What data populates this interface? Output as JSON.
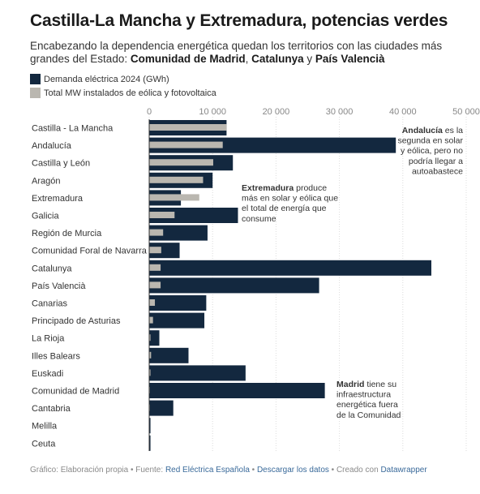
{
  "header": {
    "title": "Castilla-La Mancha y Extremadura, potencias verdes",
    "subtitle_pre": "Encabezando la dependencia energética quedan los territorios con las ciudades más grandes del Estado: ",
    "subtitle_b1": "Comunidad de Madrid",
    "subtitle_sep1": ", ",
    "subtitle_b2": "Catalunya",
    "subtitle_sep2": " y ",
    "subtitle_b3": "País Valencià"
  },
  "legend": [
    {
      "label": "Demanda eléctrica 2024 (GWh)",
      "color": "#13283f"
    },
    {
      "label": "Total MW instalados de eólica y fotovoltaica",
      "color": "#bab7b0"
    }
  ],
  "chart_data": {
    "type": "bar",
    "orientation": "horizontal",
    "xlim": [
      0,
      50000
    ],
    "xticks": [
      0,
      10000,
      20000,
      30000,
      40000,
      50000
    ],
    "xtick_labels": [
      "0",
      "10 000",
      "20 000",
      "30 000",
      "40 000",
      "50 000"
    ],
    "grid": true,
    "categories": [
      "Castilla - La Mancha",
      "Andalucía",
      "Castilla y León",
      "Aragón",
      "Extremadura",
      "Galicia",
      "Región de Murcia",
      "Comunidad Foral de Navarra",
      "Catalunya",
      "País Valencià",
      "Canarias",
      "Principado de Asturias",
      "La Rioja",
      "Illes Balears",
      "Euskadi",
      "Comunidad de Madrid",
      "Cantabria",
      "Melilla",
      "Ceuta"
    ],
    "series": [
      {
        "name": "Demanda eléctrica 2024 (GWh)",
        "color": "#13283f",
        "values": [
          12200,
          38900,
          13200,
          10000,
          5000,
          14000,
          9200,
          4800,
          44500,
          26800,
          9000,
          8700,
          1600,
          6200,
          15200,
          27700,
          3800,
          200,
          200
        ]
      },
      {
        "name": "Total MW instalados de eólica y fotovoltaica",
        "color": "#bab7b0",
        "values": [
          12200,
          11600,
          10100,
          8500,
          7900,
          4000,
          2200,
          1900,
          1800,
          1800,
          900,
          600,
          200,
          300,
          200,
          100,
          100,
          0,
          0
        ]
      }
    ],
    "annotations": [
      {
        "bold": "Andalucía",
        "lines": [
          " es la",
          "segunda en solar",
          "y eólica, pero no",
          "podría llegar a",
          "autoabastece"
        ],
        "anchor": "end"
      },
      {
        "bold": "Extremadura",
        "lines": [
          " produce",
          "más en solar y eólica que",
          "el total de energía que",
          "consume"
        ],
        "anchor": "start"
      },
      {
        "bold": "Madrid",
        "lines": [
          " tiene su",
          "infraestructura",
          "energética fuera",
          "de la Comunidad"
        ],
        "anchor": "start"
      }
    ]
  },
  "footer": {
    "prefix": "Gráfico: Elaboración propia • Fuente: ",
    "source": "Red Eléctrica Española",
    "sep1": " • ",
    "download": "Descargar los datos",
    "sep2": " • Creado con ",
    "tool": "Datawrapper"
  }
}
